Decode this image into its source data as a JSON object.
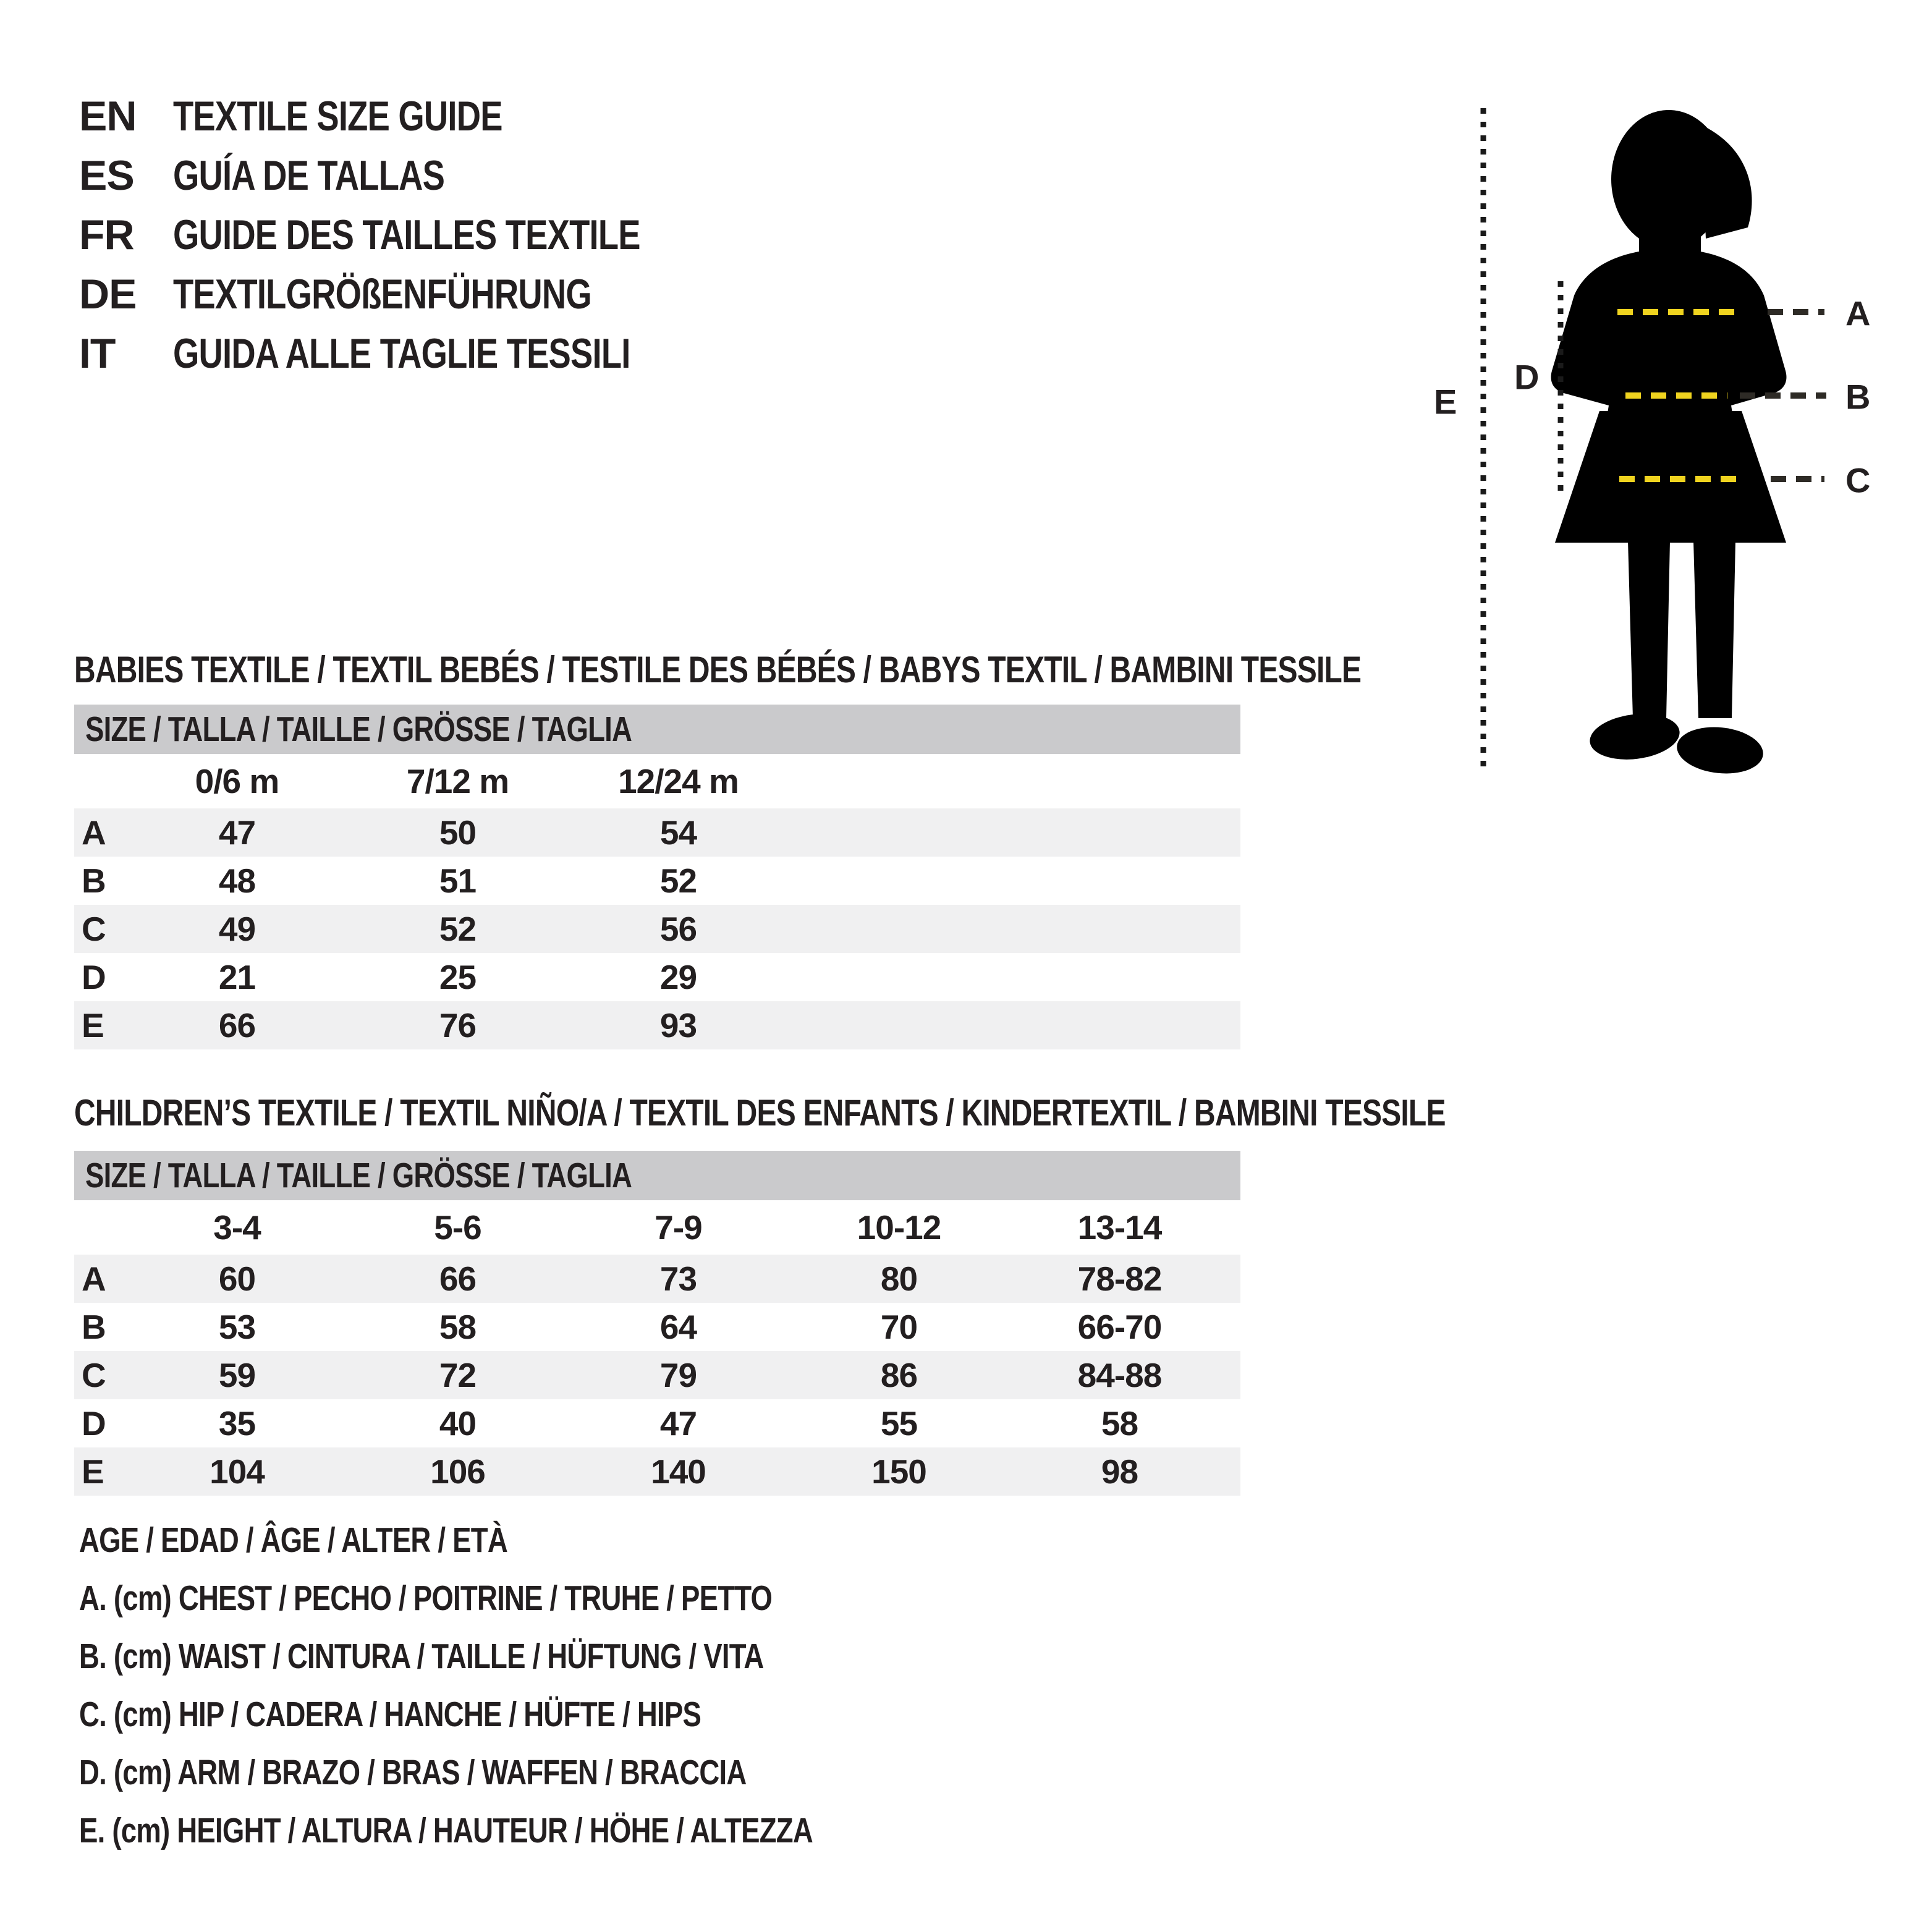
{
  "colors": {
    "text": "#231f20",
    "table_header_gray": "#cacacc",
    "row_stripe": "#f0f0f1",
    "dash_yellow": "#EFD31F",
    "dash_dark": "#2e2b26",
    "silhouette": "#000000"
  },
  "header": {
    "languages": [
      {
        "code": "EN",
        "title": "TEXTILE SIZE GUIDE"
      },
      {
        "code": "ES",
        "title": "GUÍA DE TALLAS"
      },
      {
        "code": "FR",
        "title": "GUIDE DES TAILLES TEXTILE"
      },
      {
        "code": "DE",
        "title": "TEXTILGRÖßENFÜHRUNG"
      },
      {
        "code": "IT",
        "title": "GUIDA ALLE TAGLIE TESSILI"
      }
    ]
  },
  "diagram": {
    "measure_labels": {
      "a": "A",
      "b": "B",
      "c": "C",
      "d": "D",
      "e": "E"
    }
  },
  "babies_table": {
    "section_title": "BABIES TEXTILE / TEXTIL BEBÉS / TESTILE DES BÉBÉS / BABYS TEXTIL / BAMBINI TESSILE",
    "size_header": "SIZE / TALLA / TAILLE / GRÖSSE / TAGLIA",
    "columns": [
      "0/6 m",
      "7/12 m",
      "12/24 m"
    ],
    "rows": [
      {
        "label": "A",
        "values": [
          "47",
          "50",
          "54"
        ]
      },
      {
        "label": "B",
        "values": [
          "48",
          "51",
          "52"
        ]
      },
      {
        "label": "C",
        "values": [
          "49",
          "52",
          "56"
        ]
      },
      {
        "label": "D",
        "values": [
          "21",
          "25",
          "29"
        ]
      },
      {
        "label": "E",
        "values": [
          "66",
          "76",
          "93"
        ]
      }
    ]
  },
  "children_table": {
    "section_title": "CHILDREN’S TEXTILE / TEXTIL NIÑO/A / TEXTIL DES ENFANTS / KINDERTEXTIL / BAMBINI TESSILE",
    "size_header": "SIZE / TALLA / TAILLE / GRÖSSE / TAGLIA",
    "columns": [
      "3-4",
      "5-6",
      "7-9",
      "10-12",
      "13-14"
    ],
    "rows": [
      {
        "label": "A",
        "values": [
          "60",
          "66",
          "73",
          "80",
          "78-82"
        ]
      },
      {
        "label": "B",
        "values": [
          "53",
          "58",
          "64",
          "70",
          "66-70"
        ]
      },
      {
        "label": "C",
        "values": [
          "59",
          "72",
          "79",
          "86",
          "84-88"
        ]
      },
      {
        "label": "D",
        "values": [
          "35",
          "40",
          "47",
          "55",
          "58"
        ]
      },
      {
        "label": "E",
        "values": [
          "104",
          "106",
          "140",
          "150",
          "98"
        ]
      }
    ]
  },
  "legend": {
    "lines": [
      "AGE / EDAD / ÂGE / ALTER / ETÀ",
      "A. (cm) CHEST / PECHO / POITRINE / TRUHE / PETTO",
      "B. (cm) WAIST / CINTURA / TAILLE / HÜFTUNG / VITA",
      "C. (cm) HIP / CADERA / HANCHE / HÜFTE / HIPS",
      "D. (cm) ARM / BRAZO / BRAS / WAFFEN / BRACCIA",
      "E. (cm) HEIGHT / ALTURA / HAUTEUR / HÖHE / ALTEZZA"
    ]
  }
}
